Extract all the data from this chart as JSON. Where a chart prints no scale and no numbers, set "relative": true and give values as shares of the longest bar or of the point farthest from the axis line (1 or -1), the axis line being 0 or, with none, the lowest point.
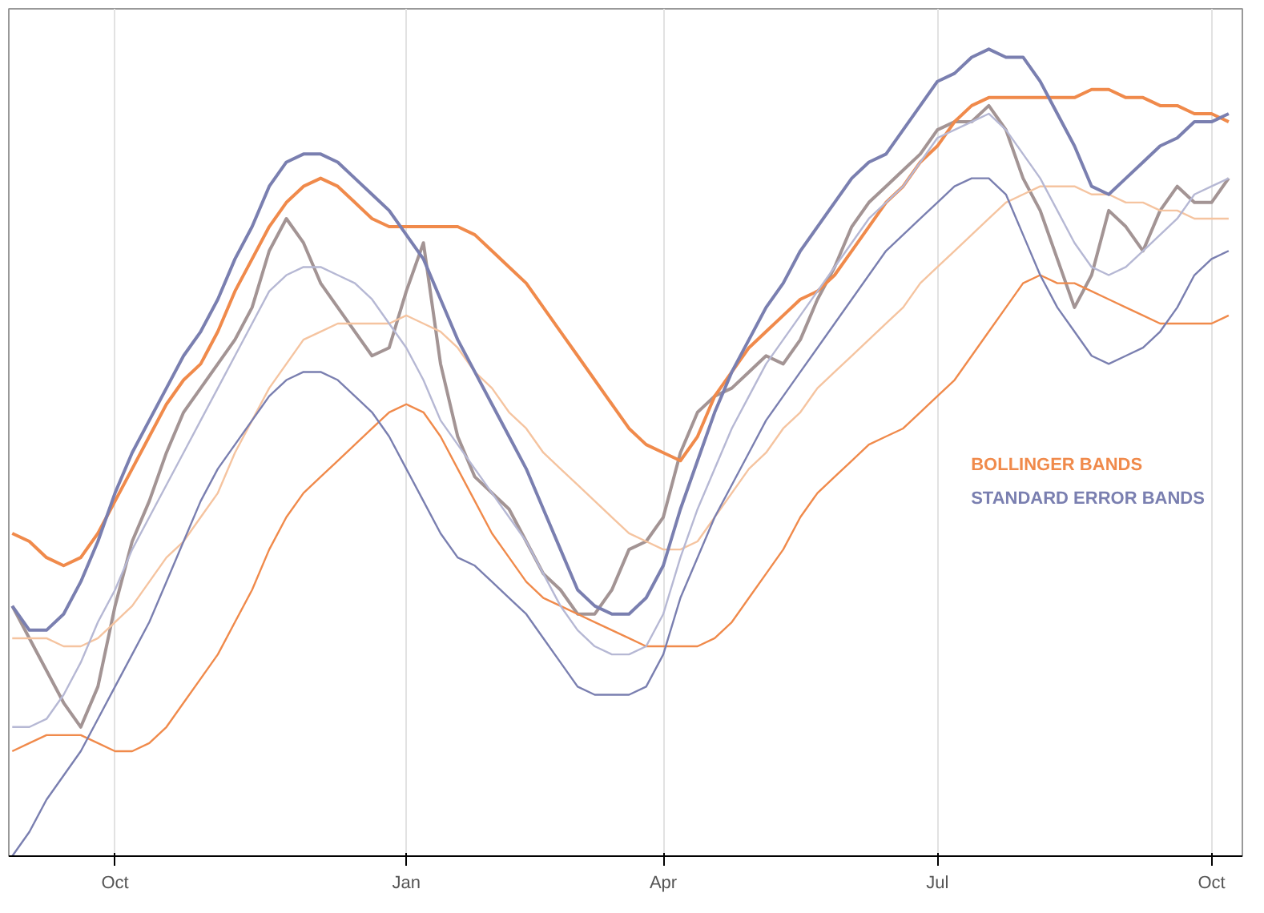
{
  "chart_data": {
    "type": "line",
    "relative": true,
    "categories": [
      null,
      null,
      null,
      null,
      null,
      null,
      "Oct",
      null,
      null,
      null,
      null,
      null,
      null,
      null,
      null,
      null,
      null,
      null,
      null,
      null,
      null,
      null,
      null,
      "Jan",
      null,
      null,
      null,
      null,
      null,
      null,
      null,
      null,
      null,
      null,
      null,
      null,
      null,
      null,
      "Apr",
      null,
      null,
      null,
      null,
      null,
      null,
      null,
      null,
      null,
      null,
      null,
      null,
      null,
      null,
      null,
      "Jul",
      null,
      null,
      null,
      null,
      null,
      null,
      null,
      null,
      null,
      null,
      null,
      null,
      null,
      null,
      null,
      "Oct",
      null
    ],
    "grid": "x",
    "legend": "right",
    "line_style": "solid",
    "marker": "none",
    "series": [
      {
        "color": "#a39494",
        "values": [
          0.31,
          0.27,
          0.23,
          0.19,
          0.16,
          0.21,
          0.31,
          0.39,
          0.44,
          0.5,
          0.55,
          0.58,
          0.61,
          0.64,
          0.68,
          0.75,
          0.79,
          0.76,
          0.71,
          0.68,
          0.65,
          0.62,
          0.63,
          0.7,
          0.76,
          0.61,
          0.52,
          0.47,
          0.45,
          0.43,
          0.39,
          0.35,
          0.33,
          0.3,
          0.3,
          0.33,
          0.38,
          0.39,
          0.42,
          0.5,
          0.55,
          0.57,
          0.58,
          0.6,
          0.62,
          0.61,
          0.64,
          0.69,
          0.73,
          0.78,
          0.81,
          0.83,
          0.85,
          0.87,
          0.9,
          0.91,
          0.91,
          0.93,
          0.9,
          0.84,
          0.8,
          0.74,
          0.68,
          0.72,
          0.8,
          0.78,
          0.75,
          0.8,
          0.83,
          0.81,
          0.81,
          0.84
        ]
      },
      {
        "name": "BOLLINGER BANDS",
        "color": "#f08a4b",
        "values": [
          0.4,
          0.39,
          0.37,
          0.36,
          0.37,
          0.4,
          0.44,
          0.48,
          0.52,
          0.56,
          0.59,
          0.61,
          0.65,
          0.7,
          0.74,
          0.78,
          0.81,
          0.83,
          0.84,
          0.83,
          0.81,
          0.79,
          0.78,
          0.78,
          0.78,
          0.78,
          0.78,
          0.77,
          0.75,
          0.73,
          0.71,
          0.68,
          0.65,
          0.62,
          0.59,
          0.56,
          0.53,
          0.51,
          0.5,
          0.49,
          0.52,
          0.57,
          0.6,
          0.63,
          0.65,
          0.67,
          0.69,
          0.7,
          0.72,
          0.75,
          0.78,
          0.81,
          0.83,
          0.86,
          0.88,
          0.91,
          0.93,
          0.94,
          0.94,
          0.94,
          0.94,
          0.94,
          0.94,
          0.95,
          0.95,
          0.94,
          0.94,
          0.93,
          0.93,
          0.92,
          0.92,
          0.91
        ]
      },
      {
        "color": "#f5c4a0",
        "values": [
          0.27,
          0.27,
          0.27,
          0.26,
          0.26,
          0.27,
          0.29,
          0.31,
          0.34,
          0.37,
          0.39,
          0.42,
          0.45,
          0.5,
          0.54,
          0.58,
          0.61,
          0.64,
          0.65,
          0.66,
          0.66,
          0.66,
          0.66,
          0.67,
          0.66,
          0.65,
          0.63,
          0.6,
          0.58,
          0.55,
          0.53,
          0.5,
          0.48,
          0.46,
          0.44,
          0.42,
          0.4,
          0.39,
          0.38,
          0.38,
          0.39,
          0.42,
          0.45,
          0.48,
          0.5,
          0.53,
          0.55,
          0.58,
          0.6,
          0.62,
          0.64,
          0.66,
          0.68,
          0.71,
          0.73,
          0.75,
          0.77,
          0.79,
          0.81,
          0.82,
          0.83,
          0.83,
          0.83,
          0.82,
          0.82,
          0.81,
          0.81,
          0.8,
          0.8,
          0.79,
          0.79,
          0.79
        ]
      },
      {
        "color": "#f08a4b",
        "values": [
          0.13,
          0.14,
          0.15,
          0.15,
          0.15,
          0.14,
          0.13,
          0.13,
          0.14,
          0.16,
          0.19,
          0.22,
          0.25,
          0.29,
          0.33,
          0.38,
          0.42,
          0.45,
          0.47,
          0.49,
          0.51,
          0.53,
          0.55,
          0.56,
          0.55,
          0.52,
          0.48,
          0.44,
          0.4,
          0.37,
          0.34,
          0.32,
          0.31,
          0.3,
          0.29,
          0.28,
          0.27,
          0.26,
          0.26,
          0.26,
          0.26,
          0.27,
          0.29,
          0.32,
          0.35,
          0.38,
          0.42,
          0.45,
          0.47,
          0.49,
          0.51,
          0.52,
          0.53,
          0.55,
          0.57,
          0.59,
          0.62,
          0.65,
          0.68,
          0.71,
          0.72,
          0.71,
          0.71,
          0.7,
          0.69,
          0.68,
          0.67,
          0.66,
          0.66,
          0.66,
          0.66,
          0.67
        ]
      },
      {
        "name": "STANDARD ERROR BANDS",
        "color": "#7a7fb0",
        "values": [
          0.31,
          0.28,
          0.28,
          0.3,
          0.34,
          0.39,
          0.45,
          0.5,
          0.54,
          0.58,
          0.62,
          0.65,
          0.69,
          0.74,
          0.78,
          0.83,
          0.86,
          0.87,
          0.87,
          0.86,
          0.84,
          0.82,
          0.8,
          0.77,
          0.74,
          0.69,
          0.64,
          0.6,
          0.56,
          0.52,
          0.48,
          0.43,
          0.38,
          0.33,
          0.31,
          0.3,
          0.3,
          0.32,
          0.36,
          0.43,
          0.49,
          0.55,
          0.6,
          0.64,
          0.68,
          0.71,
          0.75,
          0.78,
          0.81,
          0.84,
          0.86,
          0.87,
          0.9,
          0.93,
          0.96,
          0.97,
          0.99,
          1,
          0.99,
          0.99,
          0.96,
          0.92,
          0.88,
          0.83,
          0.82,
          0.84,
          0.86,
          0.88,
          0.89,
          0.91,
          0.91,
          0.92
        ]
      },
      {
        "color": "#b6b8d4",
        "values": [
          0.16,
          0.16,
          0.17,
          0.2,
          0.24,
          0.29,
          0.33,
          0.38,
          0.42,
          0.46,
          0.5,
          0.54,
          0.58,
          0.62,
          0.66,
          0.7,
          0.72,
          0.73,
          0.73,
          0.72,
          0.71,
          0.69,
          0.66,
          0.63,
          0.59,
          0.54,
          0.51,
          0.48,
          0.45,
          0.42,
          0.39,
          0.35,
          0.31,
          0.28,
          0.26,
          0.25,
          0.25,
          0.26,
          0.3,
          0.37,
          0.43,
          0.48,
          0.53,
          0.57,
          0.61,
          0.64,
          0.67,
          0.7,
          0.73,
          0.76,
          0.79,
          0.81,
          0.83,
          0.86,
          0.89,
          0.9,
          0.91,
          0.92,
          0.9,
          0.87,
          0.84,
          0.8,
          0.76,
          0.73,
          0.72,
          0.73,
          0.75,
          0.77,
          0.79,
          0.82,
          0.83,
          0.84
        ]
      },
      {
        "color": "#7a7fb0",
        "values": [
          0,
          0.03,
          0.07,
          0.1,
          0.13,
          0.17,
          0.21,
          0.25,
          0.29,
          0.34,
          0.39,
          0.44,
          0.48,
          0.51,
          0.54,
          0.57,
          0.59,
          0.6,
          0.6,
          0.59,
          0.57,
          0.55,
          0.52,
          0.48,
          0.44,
          0.4,
          0.37,
          0.36,
          0.34,
          0.32,
          0.3,
          0.27,
          0.24,
          0.21,
          0.2,
          0.2,
          0.2,
          0.21,
          0.25,
          0.32,
          0.37,
          0.42,
          0.46,
          0.5,
          0.54,
          0.57,
          0.6,
          0.63,
          0.66,
          0.69,
          0.72,
          0.75,
          0.77,
          0.79,
          0.81,
          0.83,
          0.84,
          0.84,
          0.82,
          0.77,
          0.72,
          0.68,
          0.65,
          0.62,
          0.61,
          0.62,
          0.63,
          0.65,
          0.68,
          0.72,
          0.74,
          0.75
        ]
      }
    ]
  }
}
